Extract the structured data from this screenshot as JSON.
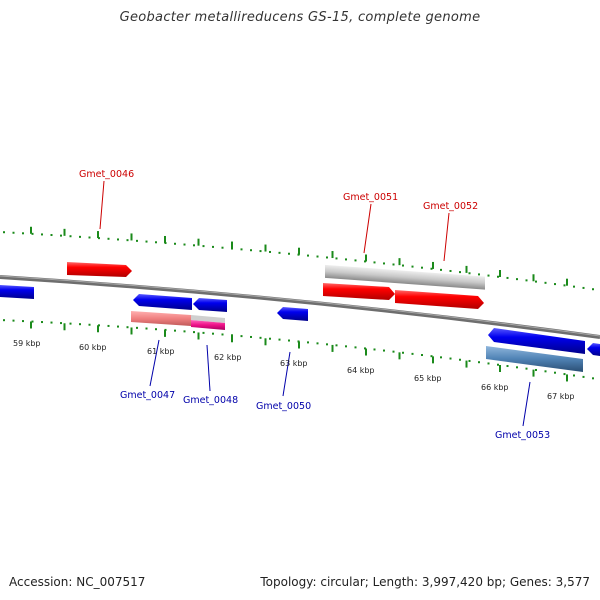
{
  "title": "Geobacter metallireducens GS-15, complete genome",
  "footer": {
    "accession": "Accession: NC_007517",
    "summary": "Topology: circular; Length: 3,997,420 bp; Genes: 3,577"
  },
  "colors": {
    "backbone": "#7a7a7a",
    "tick": "#1a8a1a",
    "forward_label": "#cc0000",
    "reverse_label": "#0000aa",
    "forward_gene": "#ff0000",
    "reverse_gene": "#0000ee",
    "forward_feature": "#c8c8c8",
    "reverse_feature_pink": "#f08080",
    "reverse_feature_magenta": "#ee1188",
    "reverse_feature_steel": "#4f82b4",
    "reverse_feature_grey": "#cfcfcf"
  },
  "scale_labels": [
    "59 kbp",
    "60 kbp",
    "61 kbp",
    "62 kbp",
    "63 kbp",
    "64 kbp",
    "65 kbp",
    "66 kbp",
    "67 kbp"
  ],
  "forward_gene_labels": [
    "Gmet_0046",
    "Gmet_0051",
    "Gmet_0052"
  ],
  "reverse_gene_labels": [
    "Gmet_0047",
    "Gmet_0048",
    "Gmet_0050",
    "Gmet_0053"
  ]
}
